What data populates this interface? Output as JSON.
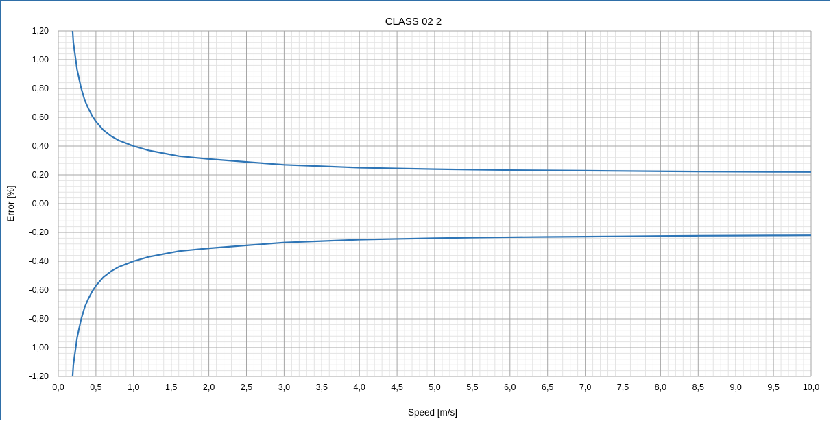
{
  "chart_data": {
    "type": "line",
    "title": "CLASS 02 2",
    "xlabel": "Speed  [m/s]",
    "ylabel": "Error [%]",
    "xlim": [
      0,
      10
    ],
    "ylim": [
      -1.2,
      1.2
    ],
    "x_major_step": 0.5,
    "x_minor_step": 0.1,
    "y_major_step": 0.2,
    "y_minor_step": 0.04,
    "grid": true,
    "legend": "none",
    "line_color": "#2e75b6",
    "x_tick_labels": [
      "0,0",
      "0,5",
      "1,0",
      "1,5",
      "2,0",
      "2,5",
      "3,0",
      "3,5",
      "4,0",
      "4,5",
      "5,0",
      "5,5",
      "6,0",
      "6,5",
      "7,0",
      "7,5",
      "8,0",
      "8,5",
      "9,0",
      "9,5",
      "10,0"
    ],
    "y_tick_labels": [
      "1,20",
      "1,00",
      "0,80",
      "0,60",
      "0,40",
      "0,20",
      "0,00",
      "-0,20",
      "-0,40",
      "-0,60",
      "-0,80",
      "-1,00",
      "-1,20"
    ],
    "series": [
      {
        "x": [
          0.19,
          0.2,
          0.25,
          0.3,
          0.35,
          0.4,
          0.45,
          0.5,
          0.6,
          0.7,
          0.8,
          0.9,
          1.0,
          1.2,
          1.4,
          1.6,
          1.8,
          2.0,
          2.5,
          3.0,
          3.5,
          4.0,
          4.5,
          5.0,
          5.5,
          6.0,
          6.5,
          7.0,
          7.5,
          8.0,
          8.5,
          9.0,
          9.5,
          10.0
        ],
        "values": [
          1.2,
          1.12,
          0.93,
          0.81,
          0.72,
          0.66,
          0.61,
          0.57,
          0.51,
          0.47,
          0.44,
          0.42,
          0.4,
          0.37,
          0.35,
          0.33,
          0.32,
          0.31,
          0.29,
          0.27,
          0.26,
          0.25,
          0.245,
          0.24,
          0.236,
          0.233,
          0.231,
          0.229,
          0.227,
          0.225,
          0.223,
          0.222,
          0.221,
          0.22
        ]
      },
      {
        "x": [
          0.19,
          0.2,
          0.25,
          0.3,
          0.35,
          0.4,
          0.45,
          0.5,
          0.6,
          0.7,
          0.8,
          0.9,
          1.0,
          1.2,
          1.4,
          1.6,
          1.8,
          2.0,
          2.5,
          3.0,
          3.5,
          4.0,
          4.5,
          5.0,
          5.5,
          6.0,
          6.5,
          7.0,
          7.5,
          8.0,
          8.5,
          9.0,
          9.5,
          10.0
        ],
        "values": [
          -1.2,
          -1.12,
          -0.93,
          -0.81,
          -0.72,
          -0.66,
          -0.61,
          -0.57,
          -0.51,
          -0.47,
          -0.44,
          -0.42,
          -0.4,
          -0.37,
          -0.35,
          -0.33,
          -0.32,
          -0.31,
          -0.29,
          -0.27,
          -0.26,
          -0.25,
          -0.245,
          -0.24,
          -0.236,
          -0.233,
          -0.231,
          -0.229,
          -0.227,
          -0.225,
          -0.223,
          -0.222,
          -0.221,
          -0.22
        ]
      }
    ]
  }
}
